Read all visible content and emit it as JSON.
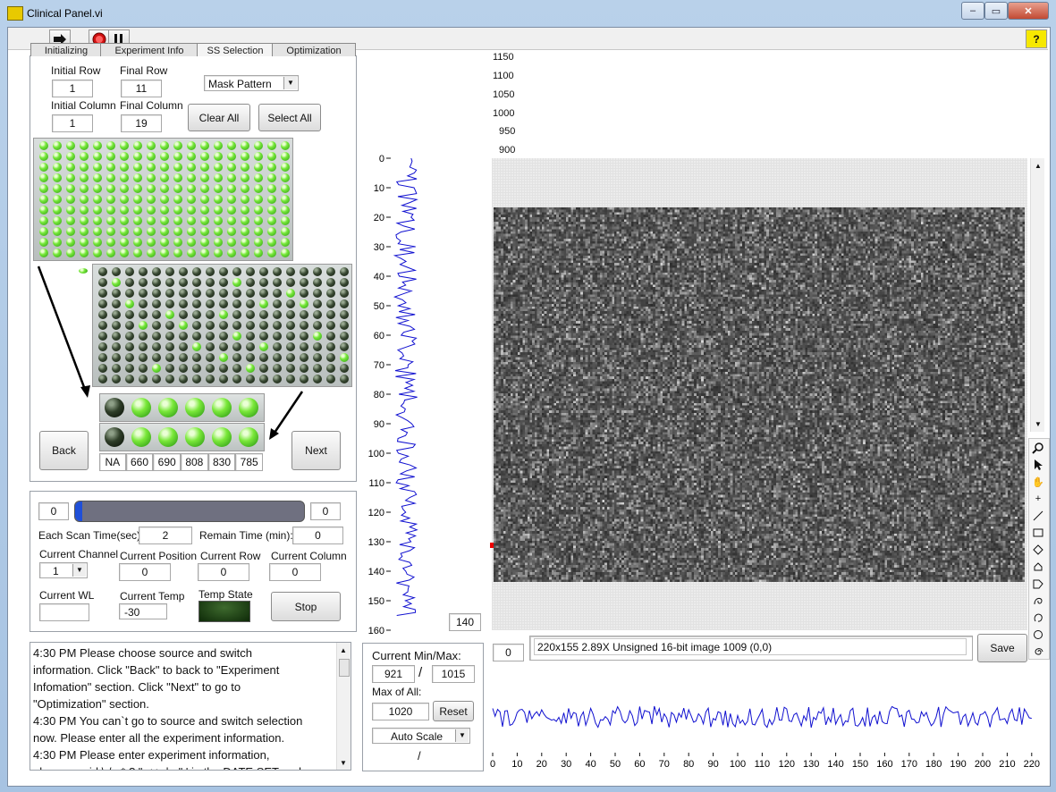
{
  "window": {
    "title": "Clinical Panel.vi",
    "minimize": "‒",
    "restore": "▭",
    "close": "✕"
  },
  "toolbar": {
    "run_icon": "run-arrow-icon",
    "abort_icon": "abort-icon",
    "pause_icon": "pause-icon",
    "help": "?"
  },
  "tabs": [
    "Initializing",
    "Experiment Info",
    "SS Selection",
    "Optimization"
  ],
  "selection": {
    "initial_row_label": "Initial Row",
    "initial_row": "1",
    "final_row_label": "Final Row",
    "final_row": "11",
    "initial_col_label": "Initial Column",
    "initial_col": "1",
    "final_col_label": "Final Column",
    "final_col": "19",
    "mask_pattern": "Mask Pattern",
    "clear_all": "Clear All",
    "select_all": "Select All",
    "back": "Back",
    "next": "Next",
    "wavelengths": [
      "NA",
      "660",
      "690",
      "808",
      "830",
      "785"
    ]
  },
  "scan": {
    "progress_min": "0",
    "progress_max": "0",
    "progress_fraction": 0.0,
    "each_scan_time_label": "Each Scan Time(sec):",
    "each_scan_time": "2",
    "remain_time_label": "Remain Time (min):",
    "remain_time": "0",
    "current_channel_label": "Current Channel",
    "current_channel": "1",
    "current_position_label": "Current Position",
    "current_position": "0",
    "current_row_label": "Current Row",
    "current_row": "0",
    "current_column_label": "Current Column",
    "current_column": "0",
    "current_wl_label": "Current WL",
    "current_wl": "",
    "current_temp_label": "Current Temp",
    "current_temp": "-30",
    "temp_state_label": "Temp State",
    "stop": "Stop"
  },
  "log_lines": [
    "4:30 PM    Please choose source and switch",
    "information. Click \"Back\" to back to \"Experiment",
    "Infomation\" section. Click \"Next\" to go to",
    "\"Optimization\" section.",
    "4:30 PM    You can`t go to source and switch selection",
    "now. Please enter all the experiment information.",
    "4:30 PM    Please enter experiment information,",
    "please avoid \\ / : * ? \" < > | , \" ' in the DATE SET and"
  ],
  "minmax": {
    "current_label": "Current Min/Max:",
    "min": "921",
    "sep": "/",
    "max": "1015",
    "max_all_label": "Max of All:",
    "max_all": "1020",
    "reset": "Reset",
    "scale_mode": "Auto Scale",
    "bottom_sep": "/"
  },
  "image": {
    "info": "220x155 2.89X Unsigned 16-bit image 1009    (0,0)",
    "zoom_value": "0",
    "save": "Save",
    "top_axis": [
      "1150",
      "1100",
      "1050",
      "1000",
      "950",
      "900"
    ]
  },
  "side_profile": {
    "ticks": [
      "0",
      "10",
      "20",
      "30",
      "40",
      "50",
      "60",
      "70",
      "80",
      "90",
      "100",
      "110",
      "120",
      "130",
      "140",
      "150",
      "160"
    ],
    "cursor_value": "140"
  },
  "bottom_profile": {
    "ticks": [
      "0",
      "10",
      "20",
      "30",
      "40",
      "50",
      "60",
      "70",
      "80",
      "90",
      "100",
      "110",
      "120",
      "130",
      "140",
      "150",
      "160",
      "170",
      "180",
      "190",
      "200",
      "210",
      "220"
    ]
  },
  "tools": [
    "zoom-icon",
    "pointer-icon",
    "pan-icon",
    "crosshair-icon",
    "line-icon",
    "rectangle-icon",
    "rotated-rect-icon",
    "polygon-icon",
    "broken-line-icon",
    "freehand-icon",
    "annulus-icon",
    "oval-icon",
    "spiral-icon"
  ],
  "colors": {
    "profile_line": "#1010d0",
    "led_on": "#5ee02a",
    "led_off": "#1a2a14",
    "progress_fill": "#1f4fd8",
    "progress_track": "#6f7080"
  }
}
